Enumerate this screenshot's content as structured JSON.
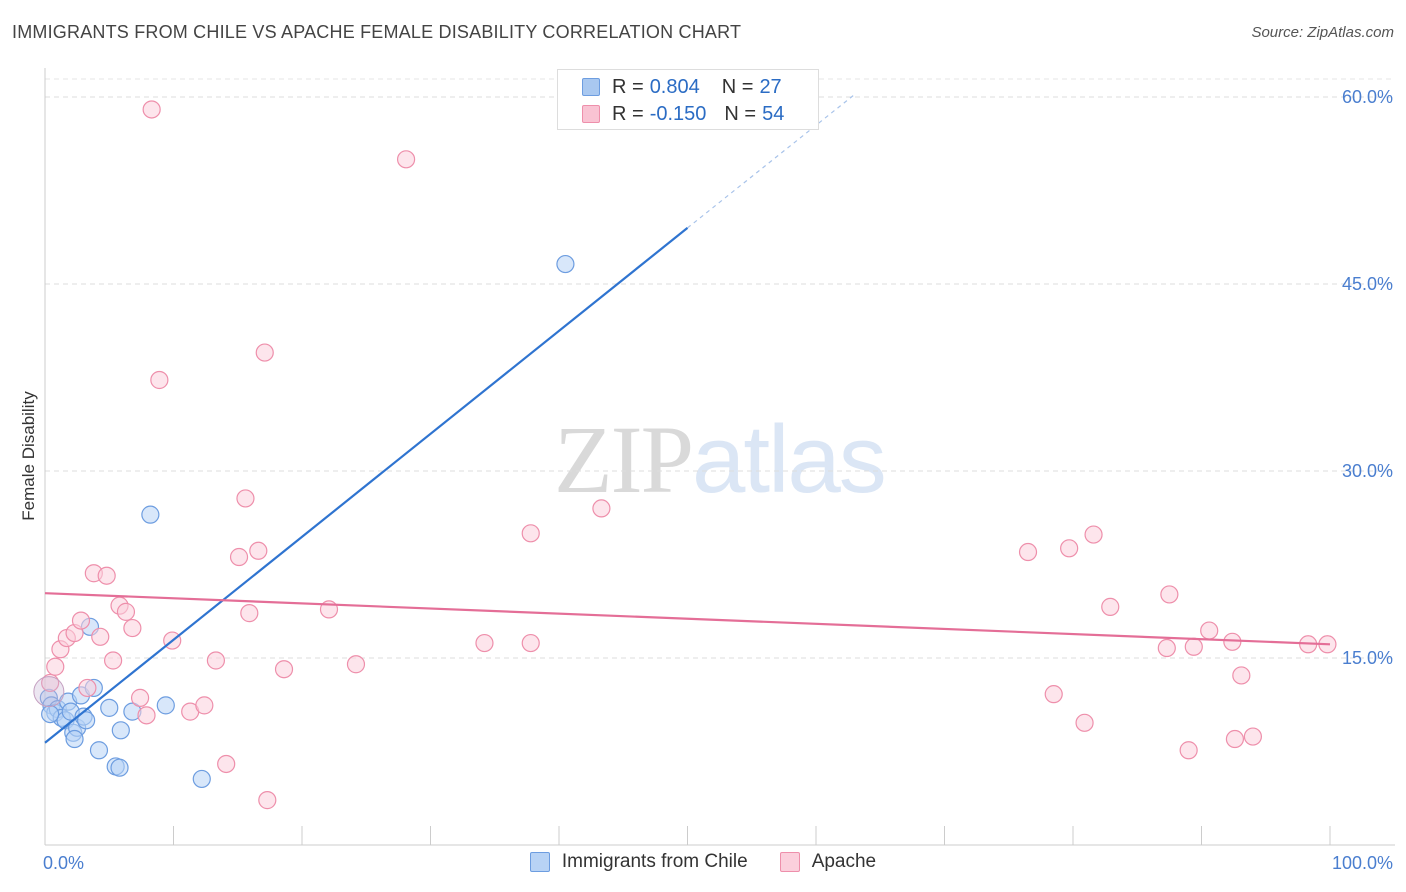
{
  "header": {
    "title": "IMMIGRANTS FROM CHILE VS APACHE FEMALE DISABILITY CORRELATION CHART",
    "source": "Source: ZipAtlas.com"
  },
  "watermark": {
    "zip": "ZIP",
    "atlas": "atlas"
  },
  "legend": {
    "rows": [
      {
        "r_label": "R =",
        "r_value": "0.804",
        "n_label": "N =",
        "n_value": "27",
        "color": "#a9c8f0",
        "border": "#6d9de0"
      },
      {
        "r_label": "R =",
        "r_value": "-0.150",
        "n_label": "N =",
        "n_value": "54",
        "color": "#f9c3d3",
        "border": "#ee8fab"
      }
    ]
  },
  "bottom_legend": [
    {
      "label": "Immigrants from Chile",
      "color": "#b8d3f5",
      "border": "#6d9de0"
    },
    {
      "label": "Apache",
      "color": "#fbcfdc",
      "border": "#ee8fab"
    }
  ],
  "chart_data": {
    "type": "scatter",
    "title": "IMMIGRANTS FROM CHILE VS APACHE FEMALE DISABILITY CORRELATION CHART",
    "xlabel": "",
    "ylabel": "Female Disability",
    "xlim": [
      0,
      100
    ],
    "ylim": [
      0,
      60
    ],
    "x_tick_labels": [
      "0.0%",
      "100.0%"
    ],
    "y_ticks": [
      15,
      30,
      45,
      60
    ],
    "y_tick_labels": [
      "15.0%",
      "30.0%",
      "45.0%",
      "60.0%"
    ],
    "grid": "horizontal dashed",
    "legend_position": "top-center",
    "series": [
      {
        "name": "Immigrants from Chile",
        "color": "#6d9de0",
        "fill": "#b8d3f5",
        "line_color": "#2f74d0",
        "trend": {
          "x0": 0,
          "y0": 8.2,
          "x1": 50,
          "y1": 49.5,
          "dashed_to_x": 63,
          "dashed_to_y": 60.2
        },
        "points": [
          [
            0.3,
            11.8
          ],
          [
            0.5,
            11.2
          ],
          [
            0.8,
            10.6
          ],
          [
            1.0,
            10.9
          ],
          [
            1.3,
            10.2
          ],
          [
            1.6,
            10.0
          ],
          [
            1.8,
            11.5
          ],
          [
            2.0,
            10.7
          ],
          [
            2.2,
            9.0
          ],
          [
            2.5,
            9.4
          ],
          [
            2.8,
            12.0
          ],
          [
            3.0,
            10.3
          ],
          [
            3.2,
            10.0
          ],
          [
            3.5,
            17.5
          ],
          [
            3.8,
            12.6
          ],
          [
            4.2,
            7.6
          ],
          [
            5.0,
            11.0
          ],
          [
            5.5,
            6.3
          ],
          [
            5.8,
            6.2
          ],
          [
            5.9,
            9.2
          ],
          [
            6.8,
            10.7
          ],
          [
            8.2,
            26.5
          ],
          [
            9.4,
            11.2
          ],
          [
            12.2,
            5.3
          ],
          [
            40.5,
            46.6
          ],
          [
            0.4,
            10.5
          ],
          [
            2.3,
            8.5
          ]
        ]
      },
      {
        "name": "Apache",
        "color": "#ee8fab",
        "fill": "#fbcfdc",
        "line_color": "#e46e97",
        "trend": {
          "x0": 0,
          "y0": 20.2,
          "x1": 100,
          "y1": 16.1
        },
        "points": [
          [
            0.4,
            13.0
          ],
          [
            0.8,
            14.3
          ],
          [
            1.2,
            15.7
          ],
          [
            1.7,
            16.6
          ],
          [
            2.3,
            17.0
          ],
          [
            2.8,
            18.0
          ],
          [
            3.3,
            12.6
          ],
          [
            3.8,
            21.8
          ],
          [
            4.3,
            16.7
          ],
          [
            4.8,
            21.6
          ],
          [
            5.3,
            14.8
          ],
          [
            5.8,
            19.2
          ],
          [
            6.3,
            18.7
          ],
          [
            6.8,
            17.4
          ],
          [
            7.4,
            11.8
          ],
          [
            7.9,
            10.4
          ],
          [
            8.3,
            59.0
          ],
          [
            8.9,
            37.3
          ],
          [
            9.9,
            16.4
          ],
          [
            11.3,
            10.7
          ],
          [
            12.4,
            11.2
          ],
          [
            13.3,
            14.8
          ],
          [
            14.1,
            6.5
          ],
          [
            15.1,
            23.1
          ],
          [
            15.6,
            27.8
          ],
          [
            15.9,
            18.6
          ],
          [
            16.6,
            23.6
          ],
          [
            17.1,
            39.5
          ],
          [
            17.3,
            3.6
          ],
          [
            18.6,
            14.1
          ],
          [
            22.1,
            18.9
          ],
          [
            24.2,
            14.5
          ],
          [
            28.1,
            55.0
          ],
          [
            34.2,
            16.2
          ],
          [
            37.8,
            25.0
          ],
          [
            37.8,
            16.2
          ],
          [
            43.3,
            27.0
          ],
          [
            76.5,
            23.5
          ],
          [
            78.5,
            12.1
          ],
          [
            79.7,
            23.8
          ],
          [
            80.9,
            9.8
          ],
          [
            81.6,
            24.9
          ],
          [
            82.9,
            19.1
          ],
          [
            87.3,
            15.8
          ],
          [
            87.5,
            20.1
          ],
          [
            89.0,
            7.6
          ],
          [
            89.4,
            15.9
          ],
          [
            90.6,
            17.2
          ],
          [
            92.4,
            16.3
          ],
          [
            92.6,
            8.5
          ],
          [
            93.1,
            13.6
          ],
          [
            94.0,
            8.7
          ],
          [
            98.3,
            16.1
          ],
          [
            99.8,
            16.1
          ]
        ]
      }
    ]
  }
}
